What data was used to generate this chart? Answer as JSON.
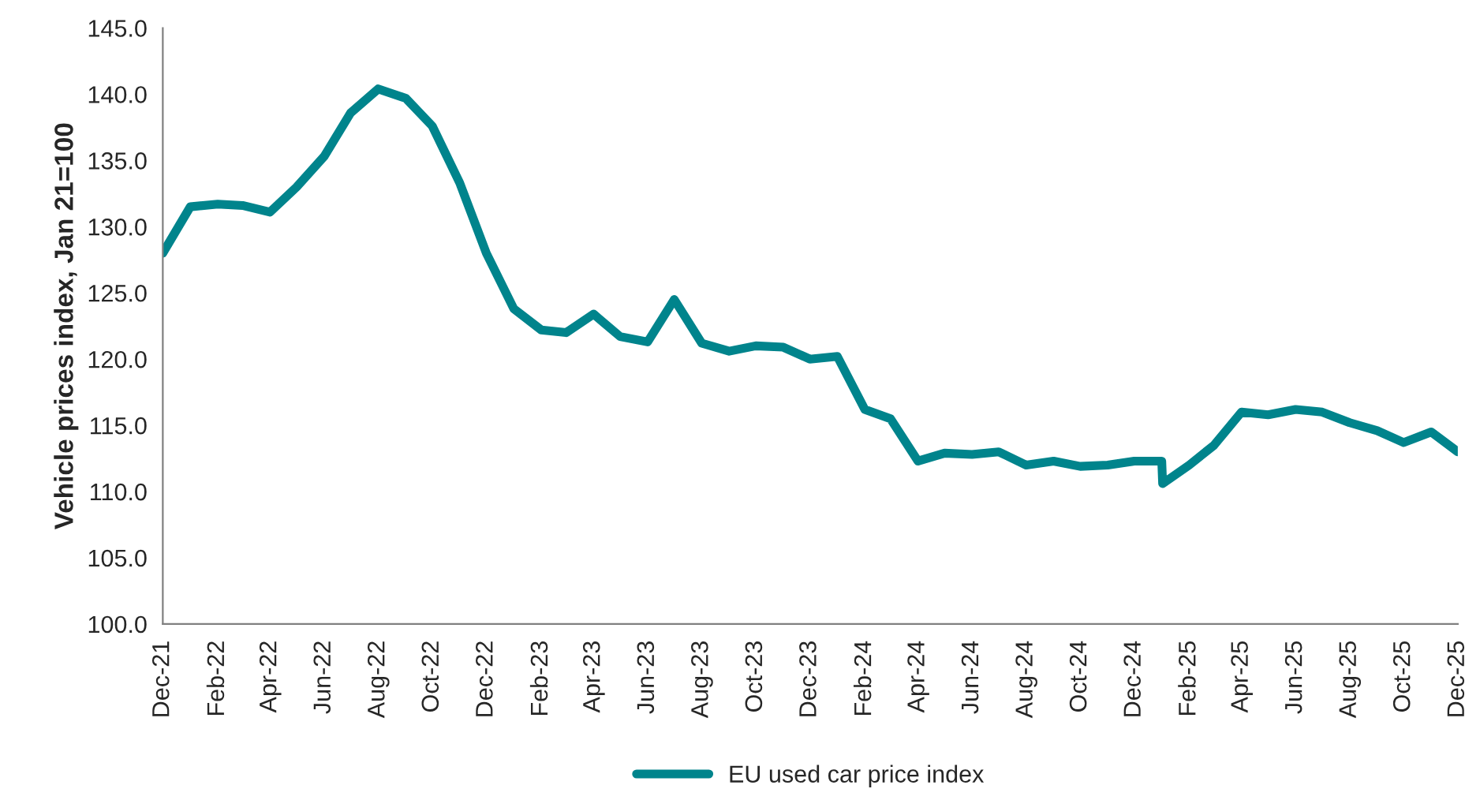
{
  "chart_data": {
    "type": "line",
    "ylabel": "Vehicle prices index, Jan 21=100",
    "x": [
      "2021-12",
      "2022-01",
      "2022-02",
      "2022-03",
      "2022-04",
      "2022-05",
      "2022-06",
      "2022-07",
      "2022-08",
      "2022-09",
      "2022-10",
      "2022-11",
      "2022-12",
      "2023-01",
      "2023-02",
      "2023-03",
      "2023-04",
      "2023-05",
      "2023-06",
      "2023-07",
      "2023-08",
      "2023-09",
      "2023-10",
      "2023-11",
      "2023-12",
      "2024-01",
      "2024-02",
      "2024-03",
      "2024-04",
      "2024-05",
      "2024-06",
      "2024-07",
      "2024-08",
      "2024-09",
      "2024-10",
      "2024-11",
      "2024-12",
      "2025-01",
      "2025-01-02",
      "2025-02",
      "2025-03",
      "2025-04",
      "2025-05",
      "2025-06",
      "2025-07",
      "2025-08",
      "2025-09",
      "2025-10",
      "2025-11",
      "2025-12"
    ],
    "series": [
      {
        "name": "EU used car price index",
        "color": "#00848c",
        "values": [
          128.0,
          131.5,
          131.7,
          131.6,
          131.1,
          133.0,
          135.3,
          138.6,
          140.4,
          139.7,
          137.6,
          133.3,
          128.0,
          123.8,
          122.2,
          122.0,
          123.4,
          121.7,
          121.3,
          124.5,
          121.2,
          120.6,
          121.0,
          120.9,
          120.0,
          120.2,
          116.2,
          115.5,
          112.3,
          112.9,
          112.8,
          113.0,
          112.0,
          112.3,
          111.9,
          112.0,
          112.3,
          112.3,
          110.6,
          112.0,
          113.5,
          116.0,
          115.8,
          116.2,
          116.0,
          115.2,
          114.6,
          113.7,
          114.5,
          113.0
        ]
      }
    ],
    "xlim": [
      "2021-12",
      "2025-12"
    ],
    "xticks": [
      {
        "value": "2021-12",
        "label": "Dec-21"
      },
      {
        "value": "2022-02",
        "label": "Feb-22"
      },
      {
        "value": "2022-04",
        "label": "Apr-22"
      },
      {
        "value": "2022-06",
        "label": "Jun-22"
      },
      {
        "value": "2022-08",
        "label": "Aug-22"
      },
      {
        "value": "2022-10",
        "label": "Oct-22"
      },
      {
        "value": "2022-12",
        "label": "Dec-22"
      },
      {
        "value": "2023-02",
        "label": "Feb-23"
      },
      {
        "value": "2023-04",
        "label": "Apr-23"
      },
      {
        "value": "2023-06",
        "label": "Jun-23"
      },
      {
        "value": "2023-08",
        "label": "Aug-23"
      },
      {
        "value": "2023-10",
        "label": "Oct-23"
      },
      {
        "value": "2023-12",
        "label": "Dec-23"
      },
      {
        "value": "2024-02",
        "label": "Feb-24"
      },
      {
        "value": "2024-04",
        "label": "Apr-24"
      },
      {
        "value": "2024-06",
        "label": "Jun-24"
      },
      {
        "value": "2024-08",
        "label": "Aug-24"
      },
      {
        "value": "2024-10",
        "label": "Oct-24"
      },
      {
        "value": "2024-12",
        "label": "Dec-24"
      },
      {
        "value": "2025-02",
        "label": "Feb-25"
      },
      {
        "value": "2025-04",
        "label": "Apr-25"
      },
      {
        "value": "2025-06",
        "label": "Jun-25"
      },
      {
        "value": "2025-08",
        "label": "Aug-25"
      },
      {
        "value": "2025-10",
        "label": "Oct-25"
      },
      {
        "value": "2025-12",
        "label": "Dec-25"
      }
    ],
    "ylim": [
      100,
      145
    ],
    "yticks": [
      {
        "value": 100,
        "label": "100.0"
      },
      {
        "value": 105,
        "label": "105.0"
      },
      {
        "value": 110,
        "label": "110.0"
      },
      {
        "value": 115,
        "label": "115.0"
      },
      {
        "value": 120,
        "label": "120.0"
      },
      {
        "value": 125,
        "label": "125.0"
      },
      {
        "value": 130,
        "label": "130.0"
      },
      {
        "value": 135,
        "label": "135.0"
      },
      {
        "value": 140,
        "label": "140.0"
      },
      {
        "value": 145,
        "label": "145.0"
      }
    ],
    "legend": "bottom",
    "grid": false,
    "marker": "none",
    "line_style": "solid"
  }
}
